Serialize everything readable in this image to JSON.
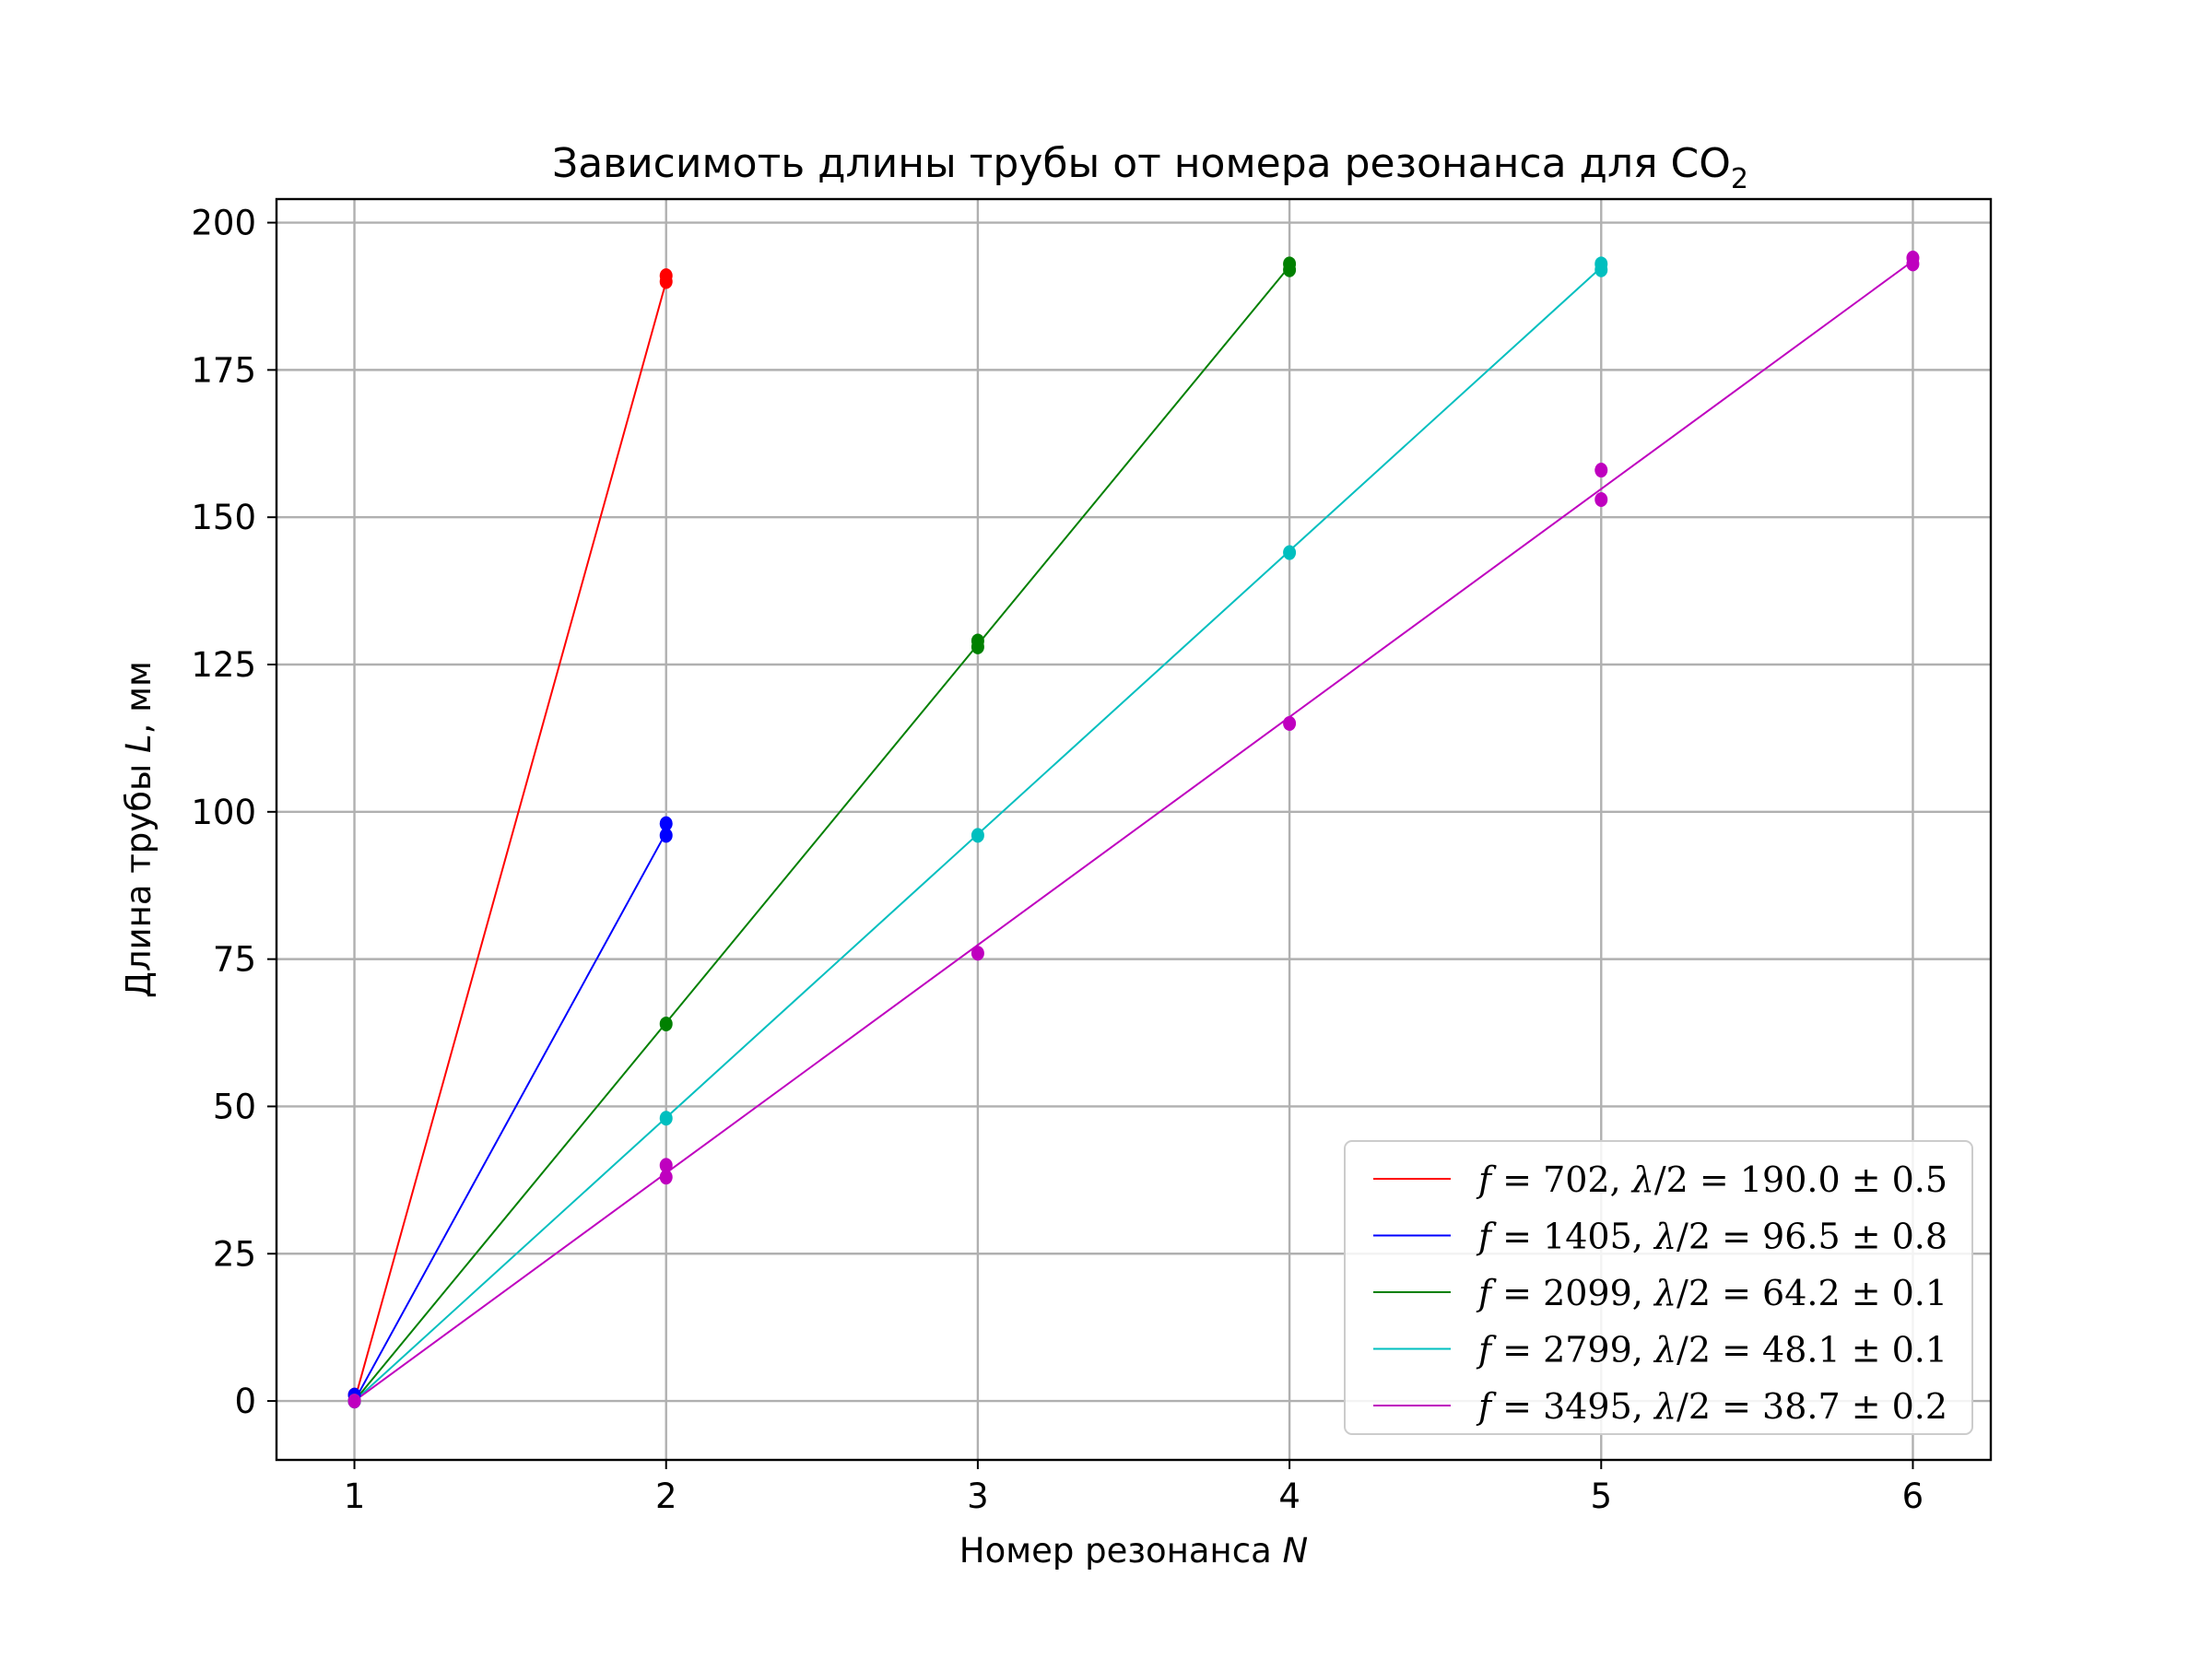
{
  "chart_data": {
    "type": "scatter",
    "title": "Зависимоть длины трубы от номера резонанса для CO",
    "title_subscript": "2",
    "xlabel": "Номер резонанса",
    "xlabel_var": "N",
    "ylabel": "Длина трубы",
    "ylabel_var": "L",
    "ylabel_unit": ", мм",
    "xlim": [
      0.75,
      6.25
    ],
    "ylim": [
      -10,
      204
    ],
    "xticks": [
      1,
      2,
      3,
      4,
      5,
      6
    ],
    "yticks": [
      0,
      25,
      50,
      75,
      100,
      125,
      150,
      175,
      200
    ],
    "grid": true,
    "legend_position": "lower-right",
    "series": [
      {
        "name": "f = 702, λ/2 = 190.0 ± 0.5",
        "legend": {
          "f": "702",
          "value": "190.0",
          "err": "0.5"
        },
        "color": "#ff0000",
        "points": [
          [
            1,
            0
          ],
          [
            1,
            1
          ],
          [
            2,
            190
          ],
          [
            2,
            191
          ]
        ],
        "fit": [
          [
            1,
            0
          ],
          [
            2,
            190.0
          ]
        ]
      },
      {
        "name": "f = 1405, λ/2 = 96.5 ± 0.8",
        "legend": {
          "f": "1405",
          "value": "96.5",
          "err": "0.8"
        },
        "color": "#0000ff",
        "points": [
          [
            1,
            0
          ],
          [
            1,
            1
          ],
          [
            2,
            96
          ],
          [
            2,
            98
          ]
        ],
        "fit": [
          [
            1,
            0
          ],
          [
            2,
            96.5
          ]
        ]
      },
      {
        "name": "f = 2099, λ/2 = 64.2 ± 0.1",
        "legend": {
          "f": "2099",
          "value": "64.2",
          "err": "0.1"
        },
        "color": "#008000",
        "points": [
          [
            1,
            0
          ],
          [
            2,
            64
          ],
          [
            3,
            128
          ],
          [
            3,
            129
          ],
          [
            4,
            192
          ],
          [
            4,
            193
          ]
        ],
        "fit": [
          [
            1,
            0
          ],
          [
            4,
            192.6
          ]
        ]
      },
      {
        "name": "f = 2799, λ/2 = 48.1 ± 0.1",
        "legend": {
          "f": "2799",
          "value": "48.1",
          "err": "0.1"
        },
        "color": "#00bfbf",
        "points": [
          [
            1,
            0
          ],
          [
            2,
            48
          ],
          [
            3,
            96
          ],
          [
            4,
            144
          ],
          [
            5,
            192
          ],
          [
            5,
            193
          ]
        ],
        "fit": [
          [
            1,
            0
          ],
          [
            5,
            192.4
          ]
        ]
      },
      {
        "name": "f = 3495, λ/2 = 38.7 ± 0.2",
        "legend": {
          "f": "3495",
          "value": "38.7",
          "err": "0.2"
        },
        "color": "#bf00bf",
        "points": [
          [
            1,
            0
          ],
          [
            2,
            38
          ],
          [
            2,
            40
          ],
          [
            3,
            76
          ],
          [
            4,
            115
          ],
          [
            5,
            153
          ],
          [
            5,
            158
          ],
          [
            6,
            193
          ],
          [
            6,
            194
          ]
        ],
        "fit": [
          [
            1,
            0
          ],
          [
            6,
            193.5
          ]
        ]
      }
    ]
  }
}
